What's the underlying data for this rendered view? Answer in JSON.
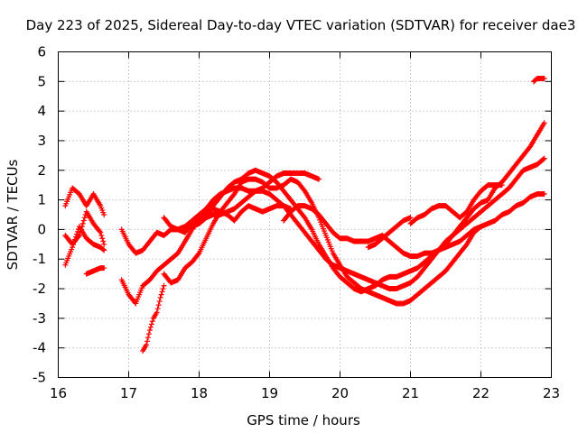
{
  "chart_data": {
    "type": "scatter",
    "title": "Day 223 of 2025, Sidereal Day-to-day VTEC variation (SDTVAR) for receiver dae3",
    "xlabel": "GPS time / hours",
    "ylabel": "SDTVAR / TECUs",
    "xlim": [
      16,
      23
    ],
    "ylim": [
      -5,
      6
    ],
    "x_ticks": [
      "16",
      "17",
      "18",
      "19",
      "20",
      "21",
      "22",
      "23"
    ],
    "y_ticks": [
      "-5",
      "-4",
      "-3",
      "-2",
      "-1",
      "0",
      "1",
      "2",
      "3",
      "4",
      "5",
      "6"
    ],
    "grid": true,
    "marker": "+",
    "color": "#ff0000",
    "series": [
      {
        "name": "track-1",
        "x": [
          16.1,
          16.2,
          16.3,
          16.4,
          16.5,
          16.6,
          16.65
        ],
        "y": [
          0.8,
          1.4,
          1.2,
          0.8,
          1.2,
          0.8,
          0.5
        ]
      },
      {
        "name": "track-2",
        "x": [
          16.1,
          16.2,
          16.3,
          16.4,
          16.5,
          16.6,
          16.65
        ],
        "y": [
          -1.2,
          -0.6,
          0.1,
          -0.3,
          -0.5,
          -0.6,
          -0.7
        ]
      },
      {
        "name": "track-3",
        "x": [
          16.1,
          16.2,
          16.3,
          16.4,
          16.5,
          16.6,
          16.65
        ],
        "y": [
          -0.2,
          -0.5,
          -0.2,
          0.6,
          0.2,
          -0.1,
          -0.5
        ]
      },
      {
        "name": "track-4",
        "x": [
          16.4,
          16.5,
          16.6,
          16.65
        ],
        "y": [
          -1.5,
          -1.4,
          -1.3,
          -1.3
        ]
      },
      {
        "name": "track-5",
        "x": [
          16.9,
          17.0,
          17.1,
          17.2,
          17.3,
          17.4,
          17.5,
          17.6,
          17.7,
          17.8,
          17.9,
          18.0,
          18.1,
          18.2,
          18.3,
          18.4,
          18.5,
          18.6,
          18.7,
          18.8,
          18.9,
          19.0,
          19.1,
          19.2,
          19.3,
          19.4,
          19.5,
          19.6,
          19.7
        ],
        "y": [
          0.0,
          -0.5,
          -0.8,
          -0.7,
          -0.4,
          -0.1,
          -0.2,
          0.0,
          0.0,
          0.1,
          0.3,
          0.5,
          0.7,
          1.0,
          1.2,
          1.3,
          1.4,
          1.4,
          1.3,
          1.3,
          1.4,
          1.6,
          1.8,
          1.9,
          1.9,
          1.9,
          1.9,
          1.8,
          1.7
        ]
      },
      {
        "name": "track-6",
        "x": [
          16.9,
          17.0,
          17.1,
          17.2,
          17.3,
          17.4,
          17.5,
          17.6,
          17.7,
          17.8,
          17.9,
          18.0,
          18.1,
          18.2,
          18.3,
          18.4,
          18.5,
          18.6,
          18.7,
          18.8,
          18.9,
          19.0,
          19.1,
          19.2,
          19.3
        ],
        "y": [
          -1.7,
          -2.2,
          -2.5,
          -1.9,
          -1.7,
          -1.4,
          -1.2,
          -1.0,
          -0.8,
          -0.4,
          0.0,
          0.3,
          0.5,
          0.7,
          0.6,
          0.5,
          0.3,
          0.6,
          0.8,
          0.7,
          0.6,
          0.7,
          0.8,
          0.8,
          0.7
        ]
      },
      {
        "name": "track-7",
        "x": [
          17.2,
          17.25,
          17.3,
          17.35,
          17.4,
          17.45,
          17.5
        ],
        "y": [
          -4.1,
          -3.9,
          -3.4,
          -3.0,
          -2.8,
          -2.3,
          -1.9
        ]
      },
      {
        "name": "track-8",
        "x": [
          17.5,
          17.6,
          17.7,
          17.8,
          17.9,
          18.0,
          18.1,
          18.2,
          18.3,
          18.4,
          18.5,
          18.6,
          18.7,
          18.8,
          18.9,
          19.0,
          19.1,
          19.2,
          19.3,
          19.4,
          19.5,
          19.6,
          19.7,
          19.8,
          19.9,
          20.0,
          20.1,
          20.2,
          20.3,
          20.4,
          20.5,
          20.6,
          20.7,
          20.8,
          20.9,
          21.0,
          21.1,
          21.2,
          21.3,
          21.4,
          21.5,
          21.6,
          21.7,
          21.8,
          21.9,
          22.0
        ],
        "y": [
          -1.5,
          -1.8,
          -1.7,
          -1.3,
          -1.1,
          -0.8,
          -0.3,
          0.2,
          0.6,
          0.9,
          1.2,
          1.6,
          1.7,
          1.7,
          1.6,
          1.4,
          1.4,
          1.5,
          1.7,
          1.6,
          1.3,
          0.9,
          0.4,
          -0.2,
          -0.8,
          -1.2,
          -1.6,
          -1.8,
          -2.0,
          -2.1,
          -2.2,
          -2.3,
          -2.4,
          -2.5,
          -2.5,
          -2.4,
          -2.2,
          -2.0,
          -1.8,
          -1.6,
          -1.4,
          -1.1,
          -0.8,
          -0.5,
          -0.1,
          0.1
        ]
      },
      {
        "name": "track-9",
        "x": [
          17.6,
          17.7,
          17.8,
          17.9,
          18.0,
          18.1,
          18.2,
          18.3,
          18.4,
          18.5,
          18.6,
          18.7,
          18.8,
          18.9,
          19.0,
          19.1,
          19.2,
          19.3,
          19.4,
          19.5,
          19.6,
          19.7,
          19.8,
          19.9,
          20.0,
          20.1,
          20.2,
          20.3,
          20.4,
          20.5,
          20.6,
          20.7,
          20.8,
          20.9,
          21.0,
          21.1,
          21.2,
          21.3,
          21.4,
          21.5,
          21.6,
          21.7,
          21.8,
          21.9,
          22.0,
          22.1,
          22.2,
          22.3,
          22.4,
          22.5,
          22.6,
          22.7,
          22.8,
          22.9
        ],
        "y": [
          0.0,
          0.0,
          -0.1,
          0.2,
          0.4,
          0.6,
          0.8,
          1.1,
          1.4,
          1.6,
          1.7,
          1.9,
          2.0,
          1.9,
          1.8,
          1.6,
          1.3,
          1.0,
          0.7,
          0.4,
          0.0,
          -0.5,
          -0.9,
          -1.3,
          -1.6,
          -1.8,
          -2.0,
          -2.1,
          -2.0,
          -1.9,
          -1.7,
          -1.6,
          -1.6,
          -1.5,
          -1.4,
          -1.3,
          -1.1,
          -0.9,
          -0.7,
          -0.5,
          -0.2,
          0.1,
          0.4,
          0.7,
          0.9,
          1.0,
          1.4,
          1.6,
          1.9,
          2.2,
          2.5,
          2.8,
          3.2,
          3.6
        ]
      },
      {
        "name": "track-10",
        "x": [
          17.5,
          17.6,
          17.7,
          17.8,
          17.9,
          18.0,
          18.1,
          18.2,
          18.3,
          18.4,
          18.5,
          18.6,
          18.7,
          18.8,
          18.9,
          19.0,
          19.1,
          19.2,
          19.3,
          19.4,
          19.5,
          19.6,
          19.7,
          19.8,
          19.9,
          20.0,
          20.1,
          20.2,
          20.3,
          20.4,
          20.5,
          20.6,
          20.7,
          20.8,
          20.9,
          21.0,
          21.1,
          21.2,
          21.3,
          21.4,
          21.5,
          21.6,
          21.7,
          21.8,
          21.9,
          22.0,
          22.1,
          22.2,
          22.3,
          22.4,
          22.5,
          22.6,
          22.7,
          22.8,
          22.9
        ],
        "y": [
          0.4,
          0.1,
          0.0,
          0.1,
          0.1,
          0.2,
          0.4,
          0.5,
          0.5,
          0.6,
          0.7,
          0.9,
          1.1,
          1.3,
          1.3,
          1.2,
          1.0,
          0.8,
          0.5,
          0.2,
          -0.1,
          -0.4,
          -0.7,
          -1.0,
          -1.2,
          -1.3,
          -1.4,
          -1.5,
          -1.6,
          -1.7,
          -1.8,
          -1.9,
          -2.0,
          -2.0,
          -1.9,
          -1.8,
          -1.6,
          -1.3,
          -1.0,
          -0.7,
          -0.4,
          -0.2,
          0.0,
          0.2,
          0.4,
          0.6,
          0.8,
          1.0,
          1.2,
          1.4,
          1.7,
          2.0,
          2.1,
          2.2,
          2.4
        ]
      },
      {
        "name": "track-11",
        "x": [
          19.2,
          19.3,
          19.4,
          19.5,
          19.6,
          19.7,
          19.8,
          19.9,
          20.0,
          20.1,
          20.2,
          20.3,
          20.4,
          20.5,
          20.6,
          20.7,
          20.8,
          20.9,
          21.0,
          21.1,
          21.2,
          21.3,
          21.4,
          21.5,
          21.6,
          21.7,
          21.8,
          21.9,
          22.0,
          22.1,
          22.2,
          22.3,
          22.4,
          22.5,
          22.6,
          22.7,
          22.8,
          22.9
        ],
        "y": [
          0.3,
          0.6,
          0.8,
          0.8,
          0.7,
          0.5,
          0.2,
          -0.1,
          -0.3,
          -0.3,
          -0.4,
          -0.4,
          -0.4,
          -0.3,
          -0.2,
          -0.4,
          -0.6,
          -0.8,
          -0.9,
          -0.9,
          -0.8,
          -0.8,
          -0.7,
          -0.6,
          -0.5,
          -0.4,
          -0.2,
          0.0,
          0.1,
          0.2,
          0.3,
          0.5,
          0.6,
          0.8,
          0.9,
          1.1,
          1.2,
          1.2
        ]
      },
      {
        "name": "track-12",
        "x": [
          20.4,
          20.5,
          20.6,
          20.7,
          20.8,
          20.9,
          21.0
        ],
        "y": [
          -0.6,
          -0.5,
          -0.3,
          -0.1,
          0.1,
          0.3,
          0.4
        ]
      },
      {
        "name": "track-13",
        "x": [
          21.0,
          21.1,
          21.2,
          21.3,
          21.4,
          21.5,
          21.6,
          21.7,
          21.8,
          21.9,
          22.0,
          22.1,
          22.2,
          22.3
        ],
        "y": [
          0.2,
          0.4,
          0.5,
          0.7,
          0.8,
          0.8,
          0.6,
          0.4,
          0.6,
          1.0,
          1.3,
          1.5,
          1.5,
          1.5
        ]
      },
      {
        "name": "track-14",
        "x": [
          22.75,
          22.8,
          22.85,
          22.9
        ],
        "y": [
          5.0,
          5.1,
          5.1,
          5.1
        ]
      }
    ]
  }
}
